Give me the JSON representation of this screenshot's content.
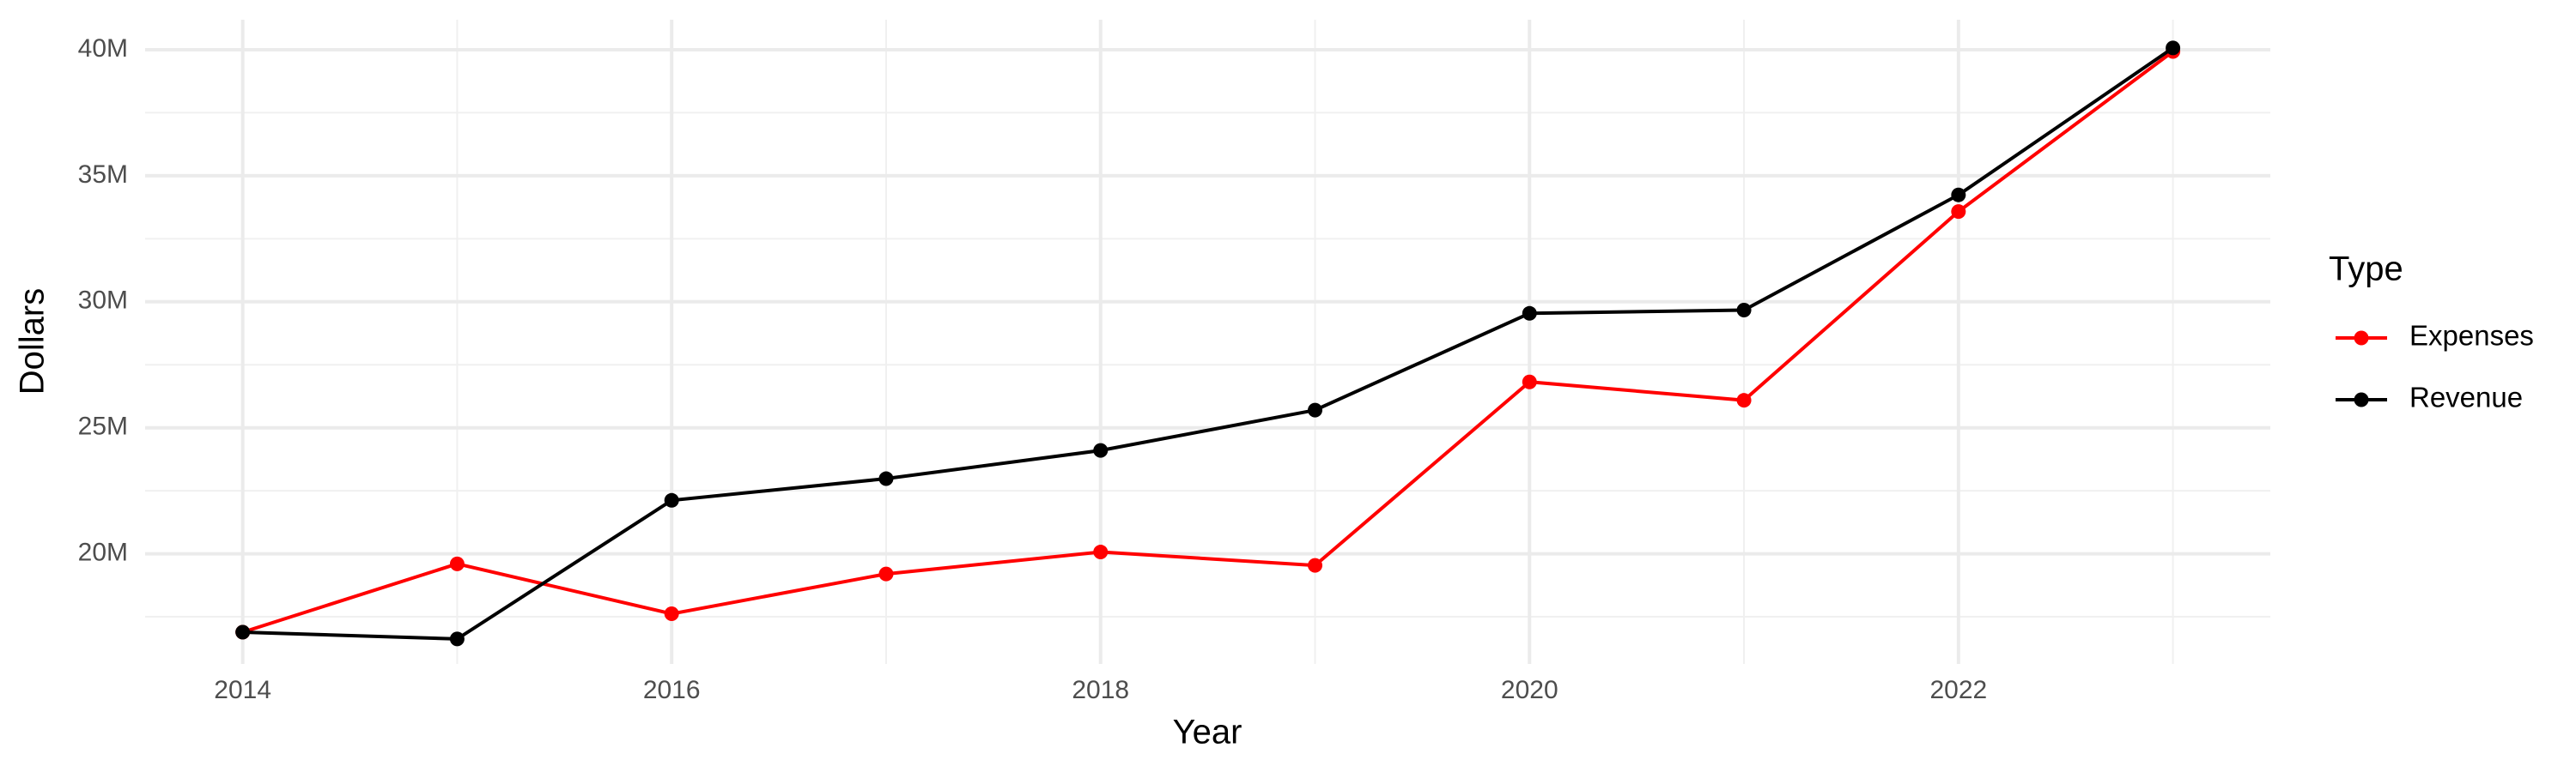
{
  "chart_data": {
    "type": "line",
    "x_label": "Year",
    "y_label": "Dollars",
    "legend_title": "Type",
    "x": [
      2014,
      2015,
      2016,
      2017,
      2018,
      2019,
      2020,
      2021,
      2022,
      2023
    ],
    "series": [
      {
        "name": "Expenses",
        "color": "#ff0000",
        "values": [
          16890000,
          19600000,
          17620000,
          19200000,
          20070000,
          19540000,
          26820000,
          26090000,
          33580000,
          39930000
        ]
      },
      {
        "name": "Revenue",
        "color": "#000000",
        "values": [
          16890000,
          16620000,
          22120000,
          22980000,
          24100000,
          25700000,
          29540000,
          29670000,
          34240000,
          40070000
        ]
      }
    ],
    "xlim": [
      2013.545,
      2023.454
    ],
    "xticks": [
      2014,
      2016,
      2018,
      2020,
      2022
    ],
    "x_minor_ticks": [
      2015,
      2017,
      2019,
      2021,
      2023
    ],
    "ylim": [
      15630000,
      41190000
    ],
    "yticks": [
      {
        "value": 20000000,
        "label": "20M"
      },
      {
        "value": 25000000,
        "label": "25M"
      },
      {
        "value": 30000000,
        "label": "30M"
      },
      {
        "value": 35000000,
        "label": "35M"
      },
      {
        "value": 40000000,
        "label": "40M"
      }
    ],
    "y_minor_ticks": [
      17500000,
      22500000,
      27500000,
      32500000,
      37500000
    ],
    "grid": true,
    "legend_position": "right"
  }
}
